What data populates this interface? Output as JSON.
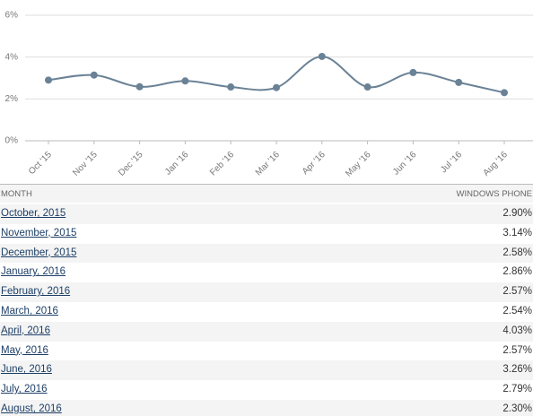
{
  "chart_data": {
    "type": "line",
    "categories": [
      "Oct '15",
      "Nov '15",
      "Dec '15",
      "Jan '16",
      "Feb '16",
      "Mar '16",
      "Apr '16",
      "May '16",
      "Jun '16",
      "Jul '16",
      "Aug '16"
    ],
    "series": [
      {
        "name": "Windows Phone",
        "color": "#6a8296",
        "values": [
          2.9,
          3.14,
          2.58,
          2.86,
          2.57,
          2.54,
          4.03,
          2.57,
          3.26,
          2.79,
          2.3
        ]
      }
    ],
    "ylim": [
      0,
      6
    ],
    "yticks": [
      {
        "value": 0,
        "label": "0%"
      },
      {
        "value": 2,
        "label": "2%"
      },
      {
        "value": 4,
        "label": "4%"
      },
      {
        "value": 6,
        "label": "6%"
      }
    ],
    "grid": true
  },
  "table": {
    "headers": [
      "MONTH",
      "WINDOWS PHONE"
    ],
    "rows": [
      [
        "October, 2015",
        "2.90%"
      ],
      [
        "November, 2015",
        "3.14%"
      ],
      [
        "December, 2015",
        "2.58%"
      ],
      [
        "January, 2016",
        "2.86%"
      ],
      [
        "February, 2016",
        "2.57%"
      ],
      [
        "March, 2016",
        "2.54%"
      ],
      [
        "April, 2016",
        "4.03%"
      ],
      [
        "May, 2016",
        "2.57%"
      ],
      [
        "June, 2016",
        "3.26%"
      ],
      [
        "July, 2016",
        "2.79%"
      ],
      [
        "August, 2016",
        "2.30%"
      ]
    ]
  }
}
